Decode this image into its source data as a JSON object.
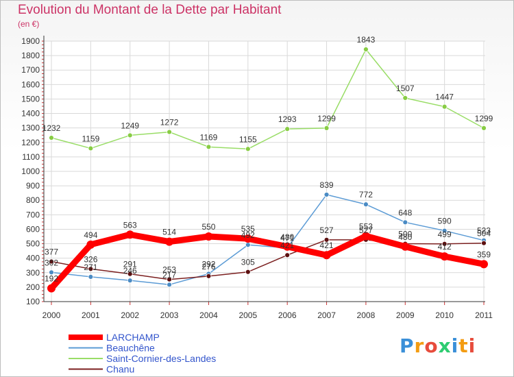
{
  "title": "Evolution du Montant de la Dette par Habitant",
  "unit_label": "(en €)",
  "logo": {
    "text": "Proxiti",
    "colors": [
      "#3a8fd8",
      "#f39c12",
      "#e74c3c",
      "#2ecc71"
    ]
  },
  "chart_data": {
    "type": "line",
    "title": "Evolution du Montant de la Dette par Habitant",
    "ylabel": "(en €)",
    "xlabel": "",
    "ylim": [
      100,
      1900
    ],
    "yticks": [
      100,
      200,
      300,
      400,
      500,
      600,
      700,
      800,
      900,
      1000,
      1100,
      1200,
      1300,
      1400,
      1500,
      1600,
      1700,
      1800,
      1900
    ],
    "x": [
      "2000",
      "2001",
      "2002",
      "2003",
      "2004",
      "2005",
      "2006",
      "2007",
      "2008",
      "2009",
      "2010",
      "2011"
    ],
    "grid": true,
    "legend_position": "bottom-left",
    "series": [
      {
        "name": "LARCHAMP",
        "color": "#ff0000",
        "values": [
          192,
          494,
          563,
          514,
          550,
          535,
          480,
          421,
          553,
          480,
          412,
          359
        ],
        "labels": [
          "192",
          "494",
          "563",
          "514",
          "550",
          "535",
          "480",
          "421",
          "553",
          "480",
          "412",
          "359"
        ]
      },
      {
        "name": "Beauchêne",
        "color": "#5b9bd5",
        "values": [
          302,
          271,
          246,
          217,
          292,
          492,
          471,
          839,
          772,
          648,
          590,
          523
        ],
        "labels": [
          "302",
          "271",
          "246",
          "217",
          "292",
          "492",
          "471",
          "839",
          "772",
          "648",
          "590",
          "523"
        ]
      },
      {
        "name": "Saint-Cornier-des-Landes",
        "color": "#99dd66",
        "values": [
          1232,
          1159,
          1249,
          1272,
          1169,
          1155,
          1293,
          1299,
          1843,
          1507,
          1447,
          1299
        ],
        "labels": [
          "1232",
          "1159",
          "1249",
          "1272",
          "1169",
          "1155",
          "1293",
          "1299",
          "1843",
          "1507",
          "1447",
          "1299"
        ]
      },
      {
        "name": "Chanu",
        "color": "#7b1f1f",
        "values": [
          377,
          326,
          291,
          253,
          276,
          305,
          421,
          527,
          527,
          500,
          499,
          504
        ],
        "labels": [
          "377",
          "326",
          "291",
          "253",
          "276",
          "305",
          "421",
          "527",
          "527",
          "500",
          "499",
          "504"
        ]
      }
    ]
  }
}
